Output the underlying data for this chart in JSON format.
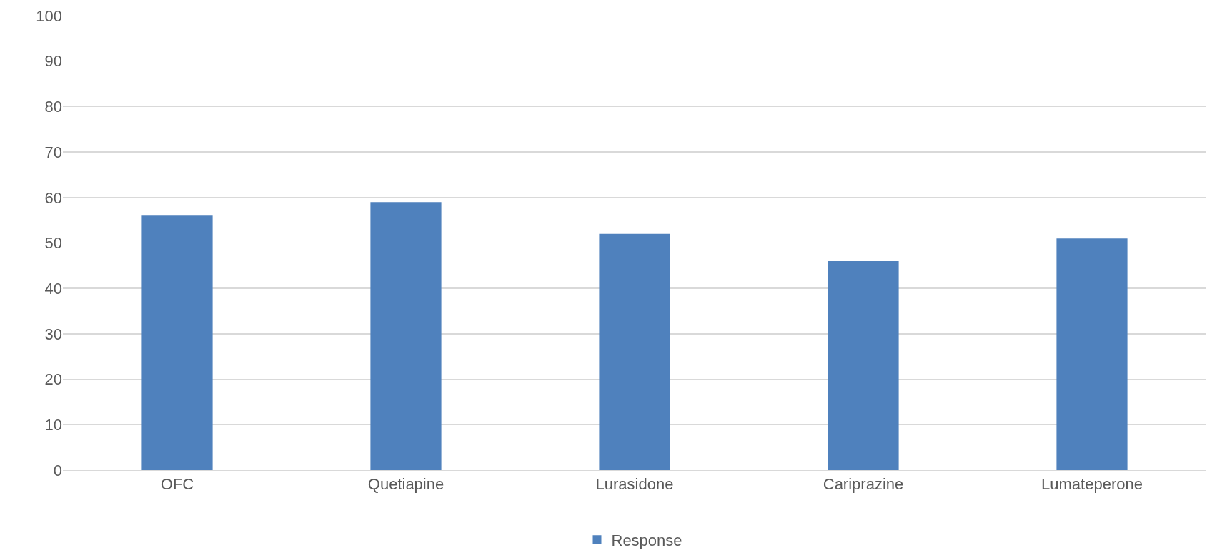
{
  "chart_data": {
    "type": "bar",
    "categories": [
      "OFC",
      "Quetiapine",
      "Lurasidone",
      "Cariprazine",
      "Lumateperone"
    ],
    "series": [
      {
        "name": "Response",
        "color": "#4f81bd",
        "values": [
          56,
          59,
          52,
          46,
          51
        ]
      }
    ],
    "ylim": [
      0,
      100
    ],
    "yticks": [
      0,
      10,
      20,
      30,
      40,
      50,
      60,
      70,
      80,
      90,
      100
    ],
    "grid": "y",
    "legend": "bottom"
  }
}
